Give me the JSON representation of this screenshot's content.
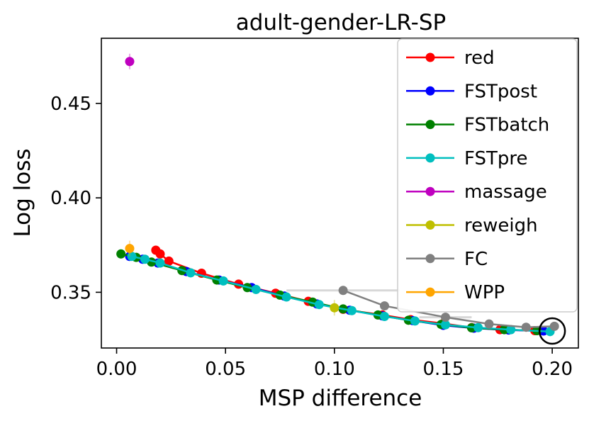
{
  "chart_data": {
    "type": "line",
    "title": "adult-gender-LR-SP",
    "xlabel": "MSP difference",
    "ylabel": "Log loss",
    "xlim": [
      -0.007,
      0.212
    ],
    "ylim": [
      0.3205,
      0.4845
    ],
    "xticks": [
      0.0,
      0.05,
      0.1,
      0.15,
      0.2
    ],
    "xtick_labels": [
      "0.00",
      "0.05",
      "0.10",
      "0.15",
      "0.20"
    ],
    "yticks": [
      0.35,
      0.4,
      0.45
    ],
    "ytick_labels": [
      "0.35",
      "0.40",
      "0.45"
    ],
    "grid": false,
    "legend": "top-right",
    "highlight": {
      "x": 0.2,
      "y": 0.3295,
      "marker": "circle"
    },
    "series": [
      {
        "name": "red",
        "color": "#ff0000",
        "points": [
          [
            0.018,
            0.3723
          ],
          [
            0.02,
            0.3703
          ],
          [
            0.024,
            0.3665
          ],
          [
            0.039,
            0.3601
          ],
          [
            0.056,
            0.3543
          ],
          [
            0.073,
            0.3495
          ],
          [
            0.088,
            0.3452
          ],
          [
            0.104,
            0.341
          ],
          [
            0.122,
            0.338
          ],
          [
            0.135,
            0.3355
          ],
          [
            0.15,
            0.3335
          ],
          [
            0.163,
            0.3313
          ],
          [
            0.176,
            0.3302
          ],
          [
            0.192,
            0.3297
          ]
        ]
      },
      {
        "name": "FSTpost",
        "color": "#0000ff",
        "points": [
          [
            0.006,
            0.369
          ],
          [
            0.012,
            0.3675
          ],
          [
            0.019,
            0.3655
          ],
          [
            0.032,
            0.361
          ],
          [
            0.047,
            0.3565
          ],
          [
            0.062,
            0.3525
          ],
          [
            0.077,
            0.348
          ],
          [
            0.092,
            0.3438
          ],
          [
            0.107,
            0.3405
          ],
          [
            0.122,
            0.3375
          ],
          [
            0.136,
            0.335
          ],
          [
            0.15,
            0.3325
          ],
          [
            0.164,
            0.331
          ],
          [
            0.18,
            0.33
          ],
          [
            0.196,
            0.3295
          ]
        ]
      },
      {
        "name": "FSTbatch",
        "color": "#008000",
        "points": [
          [
            0.002,
            0.3703
          ],
          [
            0.009,
            0.3685
          ],
          [
            0.016,
            0.366
          ],
          [
            0.03,
            0.3615
          ],
          [
            0.046,
            0.3565
          ],
          [
            0.06,
            0.3525
          ],
          [
            0.075,
            0.3485
          ],
          [
            0.09,
            0.3448
          ],
          [
            0.104,
            0.3412
          ],
          [
            0.12,
            0.338
          ],
          [
            0.134,
            0.3352
          ],
          [
            0.149,
            0.333
          ],
          [
            0.163,
            0.3312
          ],
          [
            0.178,
            0.3302
          ],
          [
            0.193,
            0.3297
          ]
        ]
      },
      {
        "name": "FSTpre",
        "color": "#00bfbf",
        "points": [
          [
            0.007,
            0.369
          ],
          [
            0.013,
            0.3675
          ],
          [
            0.02,
            0.3655
          ],
          [
            0.034,
            0.3603
          ],
          [
            0.049,
            0.356
          ],
          [
            0.064,
            0.3515
          ],
          [
            0.078,
            0.3475
          ],
          [
            0.093,
            0.3435
          ],
          [
            0.108,
            0.3403
          ],
          [
            0.123,
            0.3372
          ],
          [
            0.137,
            0.3348
          ],
          [
            0.151,
            0.3328
          ],
          [
            0.166,
            0.3313
          ],
          [
            0.181,
            0.3302
          ],
          [
            0.199,
            0.3292
          ]
        ]
      },
      {
        "name": "massage",
        "color": "#bf00bf",
        "points": [
          [
            0.006,
            0.4722
          ]
        ]
      },
      {
        "name": "reweigh",
        "color": "#bfbf00",
        "points": [
          [
            0.1,
            0.3418
          ]
        ]
      },
      {
        "name": "FC",
        "color": "#808080",
        "points": [
          [
            0.104,
            0.351
          ],
          [
            0.123,
            0.3428
          ],
          [
            0.151,
            0.3368
          ],
          [
            0.171,
            0.3332
          ],
          [
            0.188,
            0.3315
          ],
          [
            0.201,
            0.332
          ]
        ],
        "xerr": [
          0.026,
          0.0,
          0.012,
          0.0,
          0.0,
          0.0
        ]
      },
      {
        "name": "WPP",
        "color": "#ffa500",
        "points": [
          [
            0.006,
            0.3732
          ]
        ]
      }
    ]
  }
}
